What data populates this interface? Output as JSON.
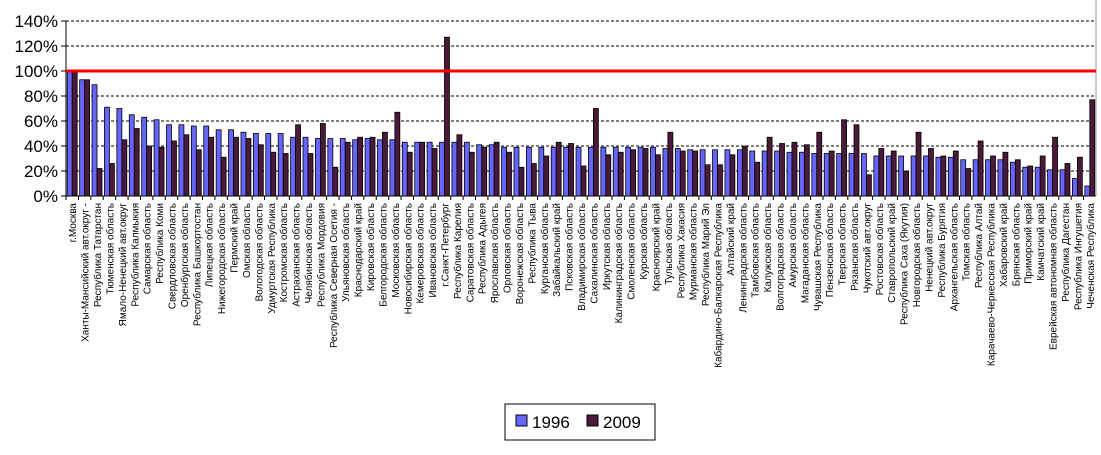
{
  "chart_data": {
    "type": "bar",
    "title": "",
    "xlabel": "",
    "ylabel": "",
    "ylim": [
      0,
      140
    ],
    "yticks": [
      "0%",
      "20%",
      "40%",
      "60%",
      "80%",
      "100%",
      "120%",
      "140%"
    ],
    "ytick_values": [
      0,
      20,
      40,
      60,
      80,
      100,
      120,
      140
    ],
    "reference_line": {
      "value": 100,
      "color": "#ff0000"
    },
    "grid": true,
    "legend_position": "bottom",
    "categories": [
      "г.Москва",
      "Ханты-Мансийский авт.округ -",
      "Республика Татарстан",
      "Тюменская область",
      "Ямало-Ненецкий авт.округ",
      "Республика Калмыкия",
      "Самарская область",
      "Республика Коми",
      "Свердловская область",
      "Оренбургская область",
      "Республика Башкортостан",
      "Липецкая область",
      "Нижегородская область",
      "Пермский край",
      "Омская область",
      "Вологодская область",
      "Удмуртская Республика",
      "Костромская область",
      "Астраханская область",
      "Челябинская область",
      "Республика Мордовия",
      "Республика Северная Осетия -",
      "Ульяновская область",
      "Краснодарский край",
      "Кировская область",
      "Белгородская область",
      "Московская область",
      "Новосибирская область",
      "Кемеровская область",
      "Ивановская область",
      "г.Санкт-Петербург",
      "Республика Карелия",
      "Саратовская область",
      "Республика Адыгея",
      "Ярославская область",
      "Орловская область",
      "Воронежская область",
      "Республика Тыва",
      "Курганская область",
      "Забайкальский край",
      "Псковская область",
      "Владимирская область",
      "Сахалинская область",
      "Иркутская область",
      "Калининградская область",
      "Смоленская область",
      "Курская область",
      "Красноярский край",
      "Тульская область",
      "Республика Хакасия",
      "Мурманская область",
      "Республика Марий Эл",
      "Кабардино-Балкарская Республика",
      "Алтайский край",
      "Ленинградская область",
      "Тамбовская область",
      "Калужская область",
      "Волгоградская область",
      "Амурская область",
      "Магаданская область",
      "Чувашская Республика",
      "Пензенская область",
      "Тверская область",
      "Рязанская область",
      "Чукотский авт.округ",
      "Ростовская область",
      "Ставропольский край",
      "Республика Саха (Якутия)",
      "Новгородская область",
      "Ненецкий авт.округ",
      "Республика Бурятия",
      "Архангельская область",
      "Томская область",
      "Республика Алтай",
      "Карачаево-Черкесская Республика",
      "Хабаровский край",
      "Брянская область",
      "Приморский край",
      "Камчатский край",
      "Еврейская автономная область",
      "Республика Дагестан",
      "Республика Ингушетия",
      "Чеченская Республика"
    ],
    "series": [
      {
        "name": "1996",
        "color": "#6666ff",
        "values": [
          100,
          93,
          89,
          71,
          70,
          65,
          63,
          61,
          57,
          57,
          56,
          56,
          53,
          53,
          51,
          50,
          50,
          50,
          47,
          47,
          46,
          46,
          46,
          45,
          46,
          45,
          45,
          43,
          43,
          43,
          43,
          43,
          43,
          41,
          41,
          39,
          39,
          39,
          39,
          39,
          39,
          39,
          39,
          39,
          39,
          39,
          39,
          39,
          38,
          38,
          37,
          37,
          37,
          37,
          37,
          36,
          36,
          36,
          35,
          35,
          34,
          34,
          34,
          34,
          34,
          32,
          32,
          32,
          32,
          32,
          31,
          31,
          29,
          29,
          29,
          29,
          27,
          23,
          23,
          21,
          21,
          14,
          8
        ]
      },
      {
        "name": "2009",
        "color": "#4a1a3a",
        "values": [
          100,
          93,
          22,
          26,
          45,
          54,
          40,
          39,
          44,
          49,
          37,
          47,
          31,
          47,
          46,
          41,
          35,
          34,
          57,
          34,
          58,
          23,
          43,
          47,
          47,
          51,
          67,
          35,
          43,
          38,
          127,
          49,
          35,
          39,
          43,
          35,
          23,
          26,
          32,
          43,
          42,
          24,
          70,
          33,
          35,
          37,
          38,
          33,
          51,
          36,
          36,
          25,
          25,
          33,
          40,
          27,
          47,
          42,
          43,
          41,
          51,
          36,
          61,
          57,
          17,
          38,
          36,
          20,
          51,
          38,
          32,
          36,
          22,
          44,
          32,
          35,
          29,
          24,
          32,
          47,
          26,
          31,
          77
        ]
      }
    ]
  }
}
